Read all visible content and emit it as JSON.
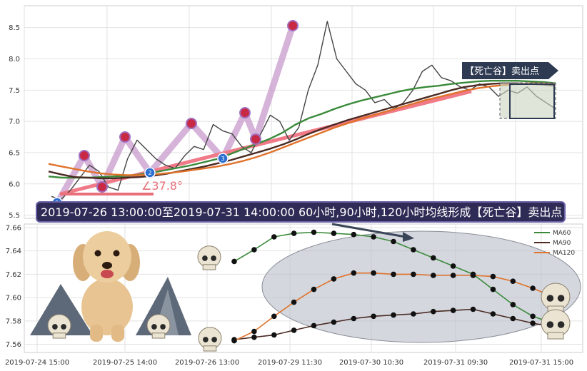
{
  "chart_data": [
    {
      "type": "line",
      "panel": "price",
      "ylim": [
        5.45,
        8.85
      ],
      "yticks": [
        "5.5",
        "6.0",
        "6.5",
        "7.0",
        "7.5",
        "8.0",
        "8.5"
      ],
      "grid": true,
      "series": [
        {
          "key": "price",
          "color": "#444444",
          "values": [
            5.8,
            5.75,
            5.9,
            6.1,
            6.3,
            6.2,
            5.95,
            5.9,
            6.4,
            6.7,
            6.55,
            6.4,
            6.3,
            6.25,
            6.45,
            6.6,
            6.55,
            6.95,
            6.85,
            6.8,
            6.6,
            6.5,
            6.8,
            7.1,
            7.0,
            6.7,
            6.9,
            7.5,
            7.9,
            8.6,
            8.0,
            7.8,
            7.6,
            7.5,
            7.3,
            7.35,
            7.2,
            7.3,
            7.5,
            7.8,
            7.9,
            7.7,
            7.65,
            7.55,
            7.5,
            7.6,
            7.55,
            7.4,
            7.5,
            7.45,
            7.55,
            7.4,
            7.3,
            7.2
          ]
        },
        {
          "key": "ma60",
          "name": "MA60",
          "color": "#3a8a3a",
          "values": [
            6.12,
            6.1,
            6.1,
            6.1,
            6.11,
            6.12,
            6.13,
            6.15,
            6.18,
            6.22,
            6.26,
            6.3,
            6.35,
            6.4,
            6.48,
            6.56,
            6.64,
            6.72,
            6.82,
            6.95,
            7.05,
            7.12,
            7.2,
            7.27,
            7.33,
            7.38,
            7.43,
            7.48,
            7.52,
            7.55,
            7.57,
            7.6,
            7.62,
            7.64,
            7.65,
            7.65,
            7.65,
            7.64,
            7.63,
            7.61
          ]
        },
        {
          "key": "ma90",
          "name": "MA90",
          "color": "#4a2a22",
          "values": [
            6.2,
            6.15,
            6.11,
            6.1,
            6.09,
            6.09,
            6.1,
            6.11,
            6.13,
            6.16,
            6.2,
            6.24,
            6.28,
            6.33,
            6.38,
            6.44,
            6.5,
            6.56,
            6.63,
            6.71,
            6.8,
            6.88,
            6.95,
            7.02,
            7.08,
            7.14,
            7.2,
            7.26,
            7.32,
            7.38,
            7.44,
            7.5,
            7.55,
            7.58,
            7.6,
            7.61,
            7.61,
            7.6,
            7.59,
            7.57
          ]
        },
        {
          "key": "ma120",
          "name": "MA120",
          "color": "#e0722a",
          "values": [
            6.32,
            6.28,
            6.24,
            6.2,
            6.17,
            6.15,
            6.14,
            6.14,
            6.15,
            6.17,
            6.19,
            6.22,
            6.25,
            6.28,
            6.32,
            6.37,
            6.43,
            6.5,
            6.58,
            6.66,
            6.74,
            6.82,
            6.9,
            6.97,
            7.04,
            7.1,
            7.16,
            7.22,
            7.28,
            7.34,
            7.39,
            7.44,
            7.49,
            7.53,
            7.56,
            7.58,
            7.6,
            7.61,
            7.61,
            7.6
          ]
        }
      ],
      "trend_angle_label": "∠37.8°",
      "sell_label": "【死亡谷】卖出点",
      "markers": [
        "1",
        "2",
        "3"
      ]
    },
    {
      "type": "line",
      "panel": "zoom",
      "x_tick_labels": [
        "2019-07-24 15:00",
        "2019-07-25 14:00",
        "2019-07-26 13:00",
        "2019-07-29 11:30",
        "2019-07-30 10:30",
        "2019-07-31 09:30",
        "2019-07-31 15:00"
      ],
      "ylim": [
        7.553,
        7.663
      ],
      "yticks": [
        "7.56",
        "7.58",
        "7.60",
        "7.62",
        "7.64",
        "7.66"
      ],
      "grid": true,
      "legend": "top-right",
      "series": [
        {
          "name": "MA60",
          "color": "#3a8a3a",
          "values": [
            7.631,
            7.641,
            7.652,
            7.655,
            7.656,
            7.655,
            7.654,
            7.652,
            7.648,
            7.641,
            7.634,
            7.627,
            7.62,
            7.607,
            7.594,
            7.584,
            7.578
          ]
        },
        {
          "name": "MA90",
          "color": "#4a2a22",
          "values": [
            7.564,
            7.566,
            7.568,
            7.572,
            7.576,
            7.579,
            7.582,
            7.584,
            7.585,
            7.586,
            7.588,
            7.589,
            7.59,
            7.586,
            7.582,
            7.578,
            7.575
          ]
        },
        {
          "name": "MA120",
          "color": "#e0722a",
          "values": [
            7.563,
            7.571,
            7.584,
            7.596,
            7.607,
            7.616,
            7.621,
            7.621,
            7.62,
            7.62,
            7.619,
            7.619,
            7.619,
            7.618,
            7.614,
            7.608,
            7.601
          ]
        }
      ]
    }
  ],
  "banner": {
    "text": "2019-07-26 13:00:00至2019-07-31 14:00:00 60小时,90小时,120小时均线形成【死亡谷】卖出点"
  }
}
